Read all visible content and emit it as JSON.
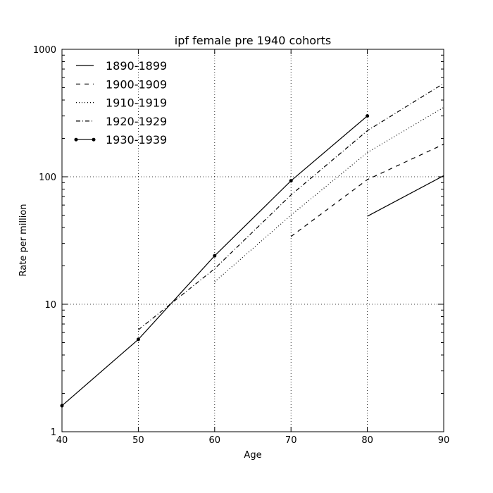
{
  "chart_data": {
    "type": "line",
    "title": "ipf female pre 1940 cohorts",
    "xlabel": "Age",
    "ylabel": "Rate per million",
    "xlim": [
      40,
      90
    ],
    "ylim": [
      1,
      1000
    ],
    "yscale": "log",
    "grid": true,
    "legend_position": "top-left",
    "xticks": [
      40,
      50,
      60,
      70,
      80,
      90
    ],
    "xtick_labels": [
      "40",
      "50",
      "60",
      "70",
      "80",
      "90"
    ],
    "yticks": [
      1,
      10,
      100,
      1000
    ],
    "ytick_labels": [
      "1",
      "10",
      "100",
      "1000"
    ],
    "series": [
      {
        "name": "1890-1899",
        "style": "solid",
        "marker": false,
        "x": [
          80,
          90
        ],
        "y": [
          49,
          102
        ]
      },
      {
        "name": "1900-1909",
        "style": "dashed",
        "marker": false,
        "x": [
          70,
          80,
          90
        ],
        "y": [
          34,
          95,
          180
        ]
      },
      {
        "name": "1910-1919",
        "style": "dotted",
        "marker": false,
        "x": [
          60,
          70,
          80,
          90
        ],
        "y": [
          15,
          50,
          155,
          350
        ]
      },
      {
        "name": "1920-1929",
        "style": "dashdot",
        "marker": false,
        "x": [
          50,
          60,
          70,
          80,
          90
        ],
        "y": [
          6.3,
          19,
          72,
          230,
          540
        ]
      },
      {
        "name": "1930-1939",
        "style": "solid",
        "marker": true,
        "x": [
          40,
          50,
          60,
          70,
          80
        ],
        "y": [
          1.6,
          5.3,
          24,
          93,
          300
        ]
      }
    ]
  }
}
